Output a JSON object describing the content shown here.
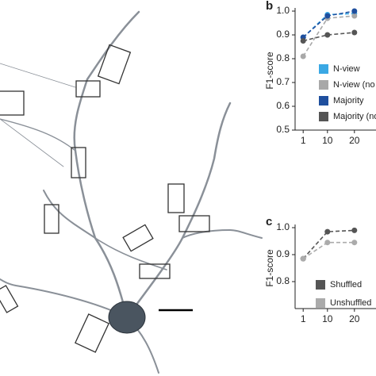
{
  "chart_data": [
    {
      "type": "line",
      "panel_label": "b",
      "ylabel": "F1-score",
      "x": [
        1,
        10,
        20
      ],
      "xlim": [
        -2,
        28
      ],
      "xticks": [
        1,
        10,
        20
      ],
      "ylim": [
        0.5,
        1.0
      ],
      "yticks": [
        0.5,
        0.6,
        0.7,
        0.8,
        0.9,
        {
          "value": 1.0,
          "label": "1.0"
        }
      ],
      "series": [
        {
          "name": "N-view",
          "color": "#3aa8e4",
          "values": [
            0.89,
            0.985,
            0.99
          ]
        },
        {
          "name": "N-view (no",
          "color": "#a8a8a8",
          "values": [
            0.81,
            0.97,
            0.98
          ]
        },
        {
          "name": "Majority",
          "color": "#1f4f9e",
          "values": [
            0.89,
            0.98,
            1.0
          ]
        },
        {
          "name": "Majority (no",
          "color": "#555555",
          "values": [
            0.875,
            0.9,
            0.91
          ]
        }
      ]
    },
    {
      "type": "line",
      "panel_label": "c",
      "ylabel": "F1-score",
      "x": [
        1,
        10,
        20
      ],
      "xlim": [
        -2,
        28
      ],
      "xticks": [
        1,
        10,
        20
      ],
      "ylim": [
        0.7,
        1.0
      ],
      "yticks": [
        0.8,
        0.9,
        {
          "value": 1.0,
          "label": "1.0"
        }
      ],
      "series": [
        {
          "name": "Shuffled",
          "color": "#555555",
          "values": [
            0.885,
            0.985,
            0.99
          ]
        },
        {
          "name": "Unshuffled",
          "color": "#ababab",
          "values": [
            0.885,
            0.945,
            0.945
          ]
        }
      ]
    }
  ]
}
